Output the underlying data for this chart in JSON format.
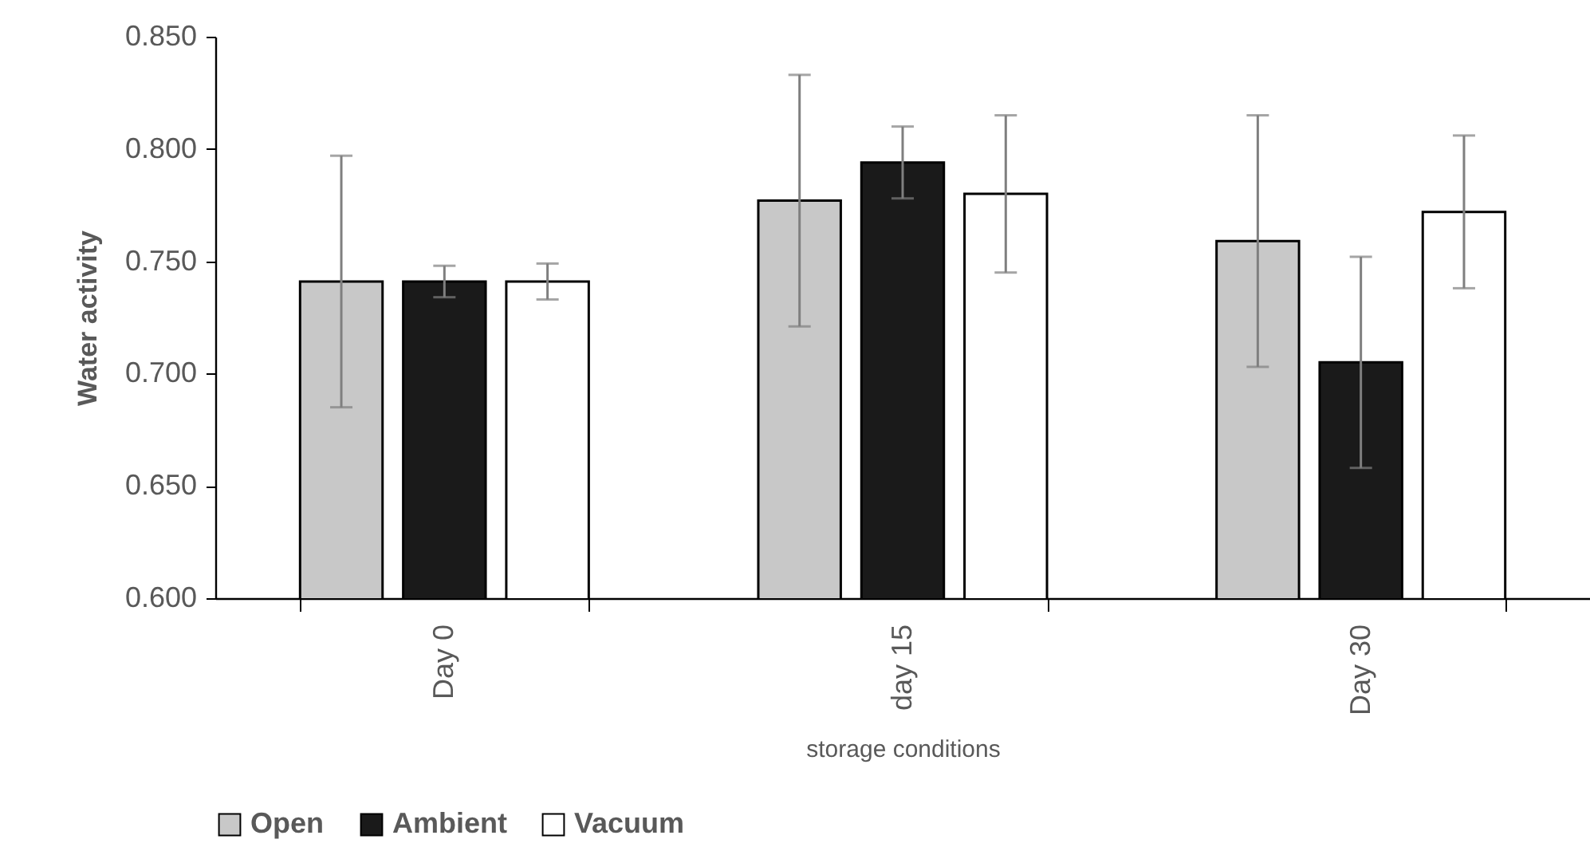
{
  "chart_data": {
    "type": "bar",
    "xlabel": "storage conditions",
    "ylabel": "Water activity",
    "categories": [
      "Day 0",
      "day 15",
      "Day 30"
    ],
    "series": [
      {
        "name": "Open",
        "color": "#c8c8c8",
        "values": [
          0.741,
          0.777,
          0.759
        ],
        "errors": [
          0.056,
          0.056,
          0.056
        ]
      },
      {
        "name": "Ambient",
        "color": "#1a1a1a",
        "values": [
          0.741,
          0.794,
          0.705
        ],
        "errors": [
          0.007,
          0.016,
          0.047
        ]
      },
      {
        "name": "Vacuum",
        "color": "#ffffff",
        "values": [
          0.741,
          0.78,
          0.772
        ],
        "errors": [
          0.008,
          0.035,
          0.034
        ]
      }
    ],
    "ylim": [
      0.6,
      0.85
    ],
    "yticks": [
      {
        "value": 0.6,
        "label": "0.600"
      },
      {
        "value": 0.65,
        "label": "0.650"
      },
      {
        "value": 0.7,
        "label": "0.700"
      },
      {
        "value": 0.75,
        "label": "0.750"
      },
      {
        "value": 0.8,
        "label": "0.800"
      },
      {
        "value": 0.85,
        "label": "0.850"
      }
    ],
    "grid": false,
    "legend": "bottom"
  }
}
